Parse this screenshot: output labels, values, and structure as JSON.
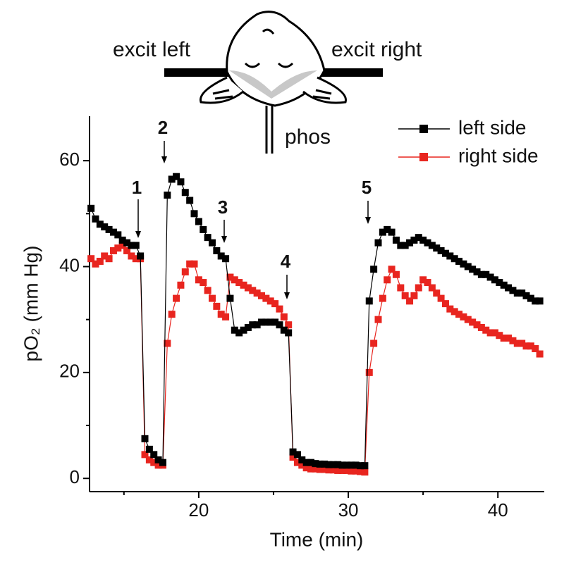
{
  "chart_data": {
    "type": "line",
    "xlabel": "Time (min)",
    "ylabel": "pO₂ (mm Hg)",
    "diagram_labels": [
      "excit left",
      "excit right",
      "phos"
    ],
    "annotations": [
      "1",
      "2",
      "3",
      "4",
      "5"
    ],
    "xlim": [
      12.7,
      43.1
    ],
    "ylim": [
      -2.5,
      68.4
    ],
    "xticks": [
      20,
      30,
      40
    ],
    "yticks": [
      0,
      20,
      40,
      60
    ],
    "x": [
      12.8,
      13.1,
      13.4,
      13.7,
      14.0,
      14.3,
      14.6,
      14.9,
      15.2,
      15.5,
      15.8,
      16.1,
      16.4,
      16.7,
      17.0,
      17.3,
      17.6,
      17.9,
      18.2,
      18.5,
      18.8,
      19.1,
      19.4,
      19.7,
      20.0,
      20.3,
      20.6,
      20.9,
      21.2,
      21.5,
      21.8,
      22.1,
      22.4,
      22.7,
      23.0,
      23.3,
      23.6,
      23.9,
      24.2,
      24.5,
      24.8,
      25.1,
      25.4,
      25.7,
      26.0,
      26.3,
      26.6,
      26.9,
      27.2,
      27.5,
      27.8,
      28.1,
      28.4,
      28.7,
      29.0,
      29.3,
      29.6,
      29.9,
      30.2,
      30.5,
      30.8,
      31.1,
      31.4,
      31.7,
      32.0,
      32.3,
      32.6,
      32.9,
      33.2,
      33.5,
      33.8,
      34.1,
      34.4,
      34.7,
      35.0,
      35.3,
      35.6,
      35.9,
      36.2,
      36.5,
      36.8,
      37.1,
      37.4,
      37.7,
      38.0,
      38.3,
      38.6,
      38.9,
      39.2,
      39.5,
      39.8,
      40.1,
      40.4,
      40.7,
      41.0,
      41.3,
      41.6,
      41.9,
      42.2,
      42.5,
      42.8
    ],
    "series": [
      {
        "name": "left side",
        "color": "#000000",
        "values": [
          51,
          49,
          48,
          47.5,
          47,
          46.5,
          46,
          45,
          44.5,
          44,
          44,
          42,
          7.5,
          5.5,
          4.5,
          3.5,
          3,
          53.5,
          56.5,
          57,
          56,
          54,
          52.5,
          50,
          48.5,
          47,
          45.5,
          44.5,
          43,
          42,
          41.5,
          34,
          28,
          27.5,
          28,
          28.5,
          29,
          29,
          29.5,
          29.5,
          29.5,
          29.5,
          29,
          28,
          27.5,
          5,
          4.5,
          3.5,
          3,
          3,
          2.8,
          2.7,
          2.7,
          2.6,
          2.6,
          2.6,
          2.5,
          2.5,
          2.5,
          2.5,
          2.4,
          2.4,
          33.5,
          39.5,
          44.5,
          46.5,
          47,
          46.5,
          45,
          44,
          44,
          44.5,
          45,
          45.5,
          45,
          44.5,
          44,
          43.5,
          43,
          42.5,
          42,
          41.5,
          41,
          40.5,
          40,
          39.5,
          39,
          38.5,
          38.5,
          38,
          37.5,
          37,
          36.5,
          36,
          35.5,
          35,
          35,
          34.5,
          34,
          33.5,
          33.5
        ]
      },
      {
        "name": "right side",
        "color": "#e8251f",
        "values": [
          41.5,
          40.5,
          41,
          42,
          41.5,
          43,
          43.5,
          44,
          43,
          42,
          41.5,
          41.5,
          4.5,
          3.5,
          3,
          2.5,
          2.5,
          25.5,
          31,
          34,
          36.5,
          39,
          40.5,
          40.5,
          37.5,
          37,
          35.5,
          34,
          32.5,
          31,
          30.5,
          38,
          37.5,
          37,
          36.5,
          36,
          35.5,
          35,
          34.5,
          34,
          33.5,
          33,
          32,
          30.5,
          29,
          4,
          3,
          2.5,
          2,
          1.8,
          1.8,
          1.7,
          1.7,
          1.6,
          1.6,
          1.5,
          1.5,
          1.5,
          1.4,
          1.4,
          1.3,
          1.2,
          20,
          25.5,
          30,
          34,
          37.5,
          39.5,
          38.5,
          36,
          34.5,
          33.5,
          34.5,
          36,
          37.5,
          37,
          36,
          35,
          34,
          33,
          32,
          31.5,
          31,
          30.5,
          30,
          29.5,
          29,
          28.5,
          28,
          27.5,
          27.5,
          27,
          26.5,
          26.5,
          26,
          25.5,
          25.5,
          25,
          25,
          24.5,
          23.5
        ]
      }
    ]
  }
}
